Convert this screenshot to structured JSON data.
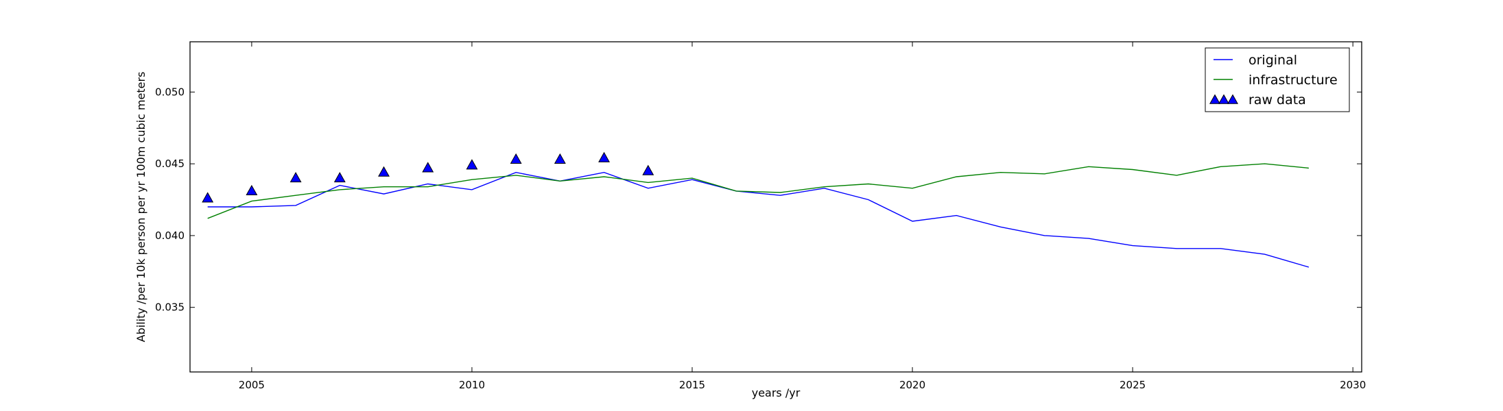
{
  "chart_data": {
    "type": "line",
    "title": "",
    "xlabel": "years /yr",
    "ylabel": "Ability /per 10k person per yr 100m cubic meters",
    "xlim": [
      2003.6,
      2030.2
    ],
    "ylim": [
      0.0305,
      0.0535
    ],
    "x_ticks": [
      2005,
      2010,
      2015,
      2020,
      2025,
      2030
    ],
    "y_ticks": [
      0.035,
      0.04,
      0.045,
      0.05
    ],
    "x_tick_labels": [
      "2005",
      "2010",
      "2015",
      "2020",
      "2025",
      "2030"
    ],
    "y_tick_labels": [
      "0.035",
      "0.040",
      "0.045",
      "0.050"
    ],
    "grid": false,
    "legend_position": "top-right",
    "series": [
      {
        "name": "original",
        "kind": "line",
        "color": "#0000ff",
        "x": [
          2004,
          2005,
          2006,
          2007,
          2008,
          2009,
          2010,
          2011,
          2012,
          2013,
          2014,
          2015,
          2016,
          2017,
          2018,
          2019,
          2020,
          2021,
          2022,
          2023,
          2024,
          2025,
          2026,
          2027,
          2028,
          2029
        ],
        "values": [
          0.042,
          0.042,
          0.0421,
          0.0435,
          0.0429,
          0.0436,
          0.0432,
          0.0444,
          0.0438,
          0.0444,
          0.0433,
          0.0439,
          0.0431,
          0.0428,
          0.0433,
          0.0425,
          0.041,
          0.0414,
          0.0406,
          0.04,
          0.0398,
          0.0393,
          0.0391,
          0.0391,
          0.0387,
          0.0378
        ]
      },
      {
        "name": "infrastructure",
        "kind": "line",
        "color": "#008000",
        "x": [
          2004,
          2005,
          2006,
          2007,
          2008,
          2009,
          2010,
          2011,
          2012,
          2013,
          2014,
          2015,
          2016,
          2017,
          2018,
          2019,
          2020,
          2021,
          2022,
          2023,
          2024,
          2025,
          2026,
          2027,
          2028,
          2029
        ],
        "values": [
          0.0412,
          0.0424,
          0.0428,
          0.0432,
          0.0434,
          0.0434,
          0.0439,
          0.0442,
          0.0438,
          0.0441,
          0.0437,
          0.044,
          0.0431,
          0.043,
          0.0434,
          0.0436,
          0.0433,
          0.0441,
          0.0444,
          0.0443,
          0.0448,
          0.0446,
          0.0442,
          0.0448,
          0.045,
          0.0447
        ]
      },
      {
        "name": "raw data",
        "kind": "scatter",
        "marker": "triangle",
        "color": "#0000ff",
        "x": [
          2004,
          2005,
          2006,
          2007,
          2008,
          2009,
          2010,
          2011,
          2012,
          2013,
          2014
        ],
        "values": [
          0.0426,
          0.0431,
          0.044,
          0.044,
          0.0444,
          0.0447,
          0.0449,
          0.0453,
          0.0453,
          0.0454,
          0.0445
        ]
      }
    ]
  }
}
